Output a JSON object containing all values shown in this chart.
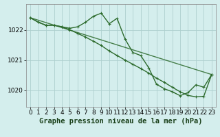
{
  "background_color": "#d4eeed",
  "grid_color": "#aed0ce",
  "line_color": "#2d6b2d",
  "marker_color": "#2d6b2d",
  "xlabel": "Graphe pression niveau de la mer (hPa)",
  "xlim": [
    -0.5,
    23.5
  ],
  "ylim": [
    1019.45,
    1022.85
  ],
  "yticks": [
    1020,
    1021,
    1022
  ],
  "xticks": [
    0,
    1,
    2,
    3,
    4,
    5,
    6,
    7,
    8,
    9,
    10,
    11,
    12,
    13,
    14,
    15,
    16,
    17,
    18,
    19,
    20,
    21,
    22,
    23
  ],
  "line1_x": [
    0,
    1,
    2,
    3,
    4,
    5,
    6,
    7,
    8,
    9,
    10,
    11,
    12,
    13,
    14,
    15,
    16,
    17,
    18,
    19,
    20,
    21,
    22,
    23
  ],
  "line1_y": [
    1022.4,
    1022.25,
    1022.15,
    1022.15,
    1022.1,
    1022.05,
    1022.1,
    1022.25,
    1022.45,
    1022.55,
    1022.2,
    1022.38,
    1021.7,
    1021.25,
    1021.15,
    1020.75,
    1020.2,
    1020.05,
    1019.95,
    1019.82,
    1019.92,
    1020.18,
    1020.1,
    1020.52
  ],
  "line2_x": [
    0,
    1,
    2,
    3,
    4,
    5,
    6,
    7,
    8,
    9,
    10,
    11,
    12,
    13,
    14,
    15,
    16,
    17,
    18,
    19,
    20,
    21,
    22,
    23
  ],
  "line2_y": [
    1022.4,
    1022.25,
    1022.15,
    1022.15,
    1022.1,
    1022.0,
    1021.88,
    1021.76,
    1021.62,
    1021.48,
    1021.3,
    1021.15,
    1021.0,
    1020.86,
    1020.72,
    1020.57,
    1020.4,
    1020.26,
    1020.1,
    1019.95,
    1019.83,
    1019.78,
    1019.8,
    1020.52
  ],
  "line3_x": [
    0,
    23
  ],
  "line3_y": [
    1022.4,
    1020.52
  ],
  "title_fontsize": 7.5,
  "tick_fontsize": 6.5,
  "linewidth": 1.0,
  "markersize": 3.5,
  "fig_width": 3.2,
  "fig_height": 2.0,
  "dpi": 100
}
